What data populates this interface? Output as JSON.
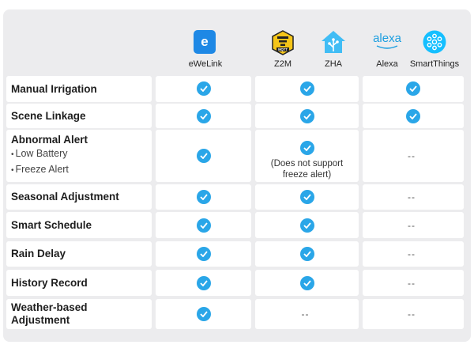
{
  "platforms": [
    {
      "key": "ewelink",
      "label": "eWeLink",
      "icon": "ewelink-logo-icon"
    },
    {
      "key": "z2m",
      "label": "Z2M",
      "icon": "z2m-bee-logo-icon"
    },
    {
      "key": "zha",
      "label": "ZHA",
      "icon": "zha-home-logo-icon"
    },
    {
      "key": "alexa",
      "label": "Alexa",
      "icon": "alexa-logo-icon",
      "logo_text": "alexa"
    },
    {
      "key": "smartthings",
      "label": "SmartThings",
      "icon": "smartthings-logo-icon"
    }
  ],
  "logos": {
    "ewelink_letter": "e",
    "z2m_text": "MQTT"
  },
  "rows": [
    {
      "title": "Manual Irrigation",
      "ewelink": "check",
      "z2m_zha": "check",
      "alexa_st": "check"
    },
    {
      "title": "Scene Linkage",
      "ewelink": "check",
      "z2m_zha": "check",
      "alexa_st": "check"
    },
    {
      "title": "Abnormal Alert",
      "subs": [
        "Low Battery",
        "Freeze Alert"
      ],
      "ewelink": "check",
      "z2m_zha": "check",
      "z2m_zha_note": "(Does not support\nfreeze alert)",
      "alexa_st": "--"
    },
    {
      "title": "Seasonal Adjustment",
      "ewelink": "check",
      "z2m_zha": "check",
      "alexa_st": "--"
    },
    {
      "title": "Smart Schedule",
      "ewelink": "check",
      "z2m_zha": "check",
      "alexa_st": "--"
    },
    {
      "title": "Rain Delay",
      "ewelink": "check",
      "z2m_zha": "check",
      "alexa_st": "--"
    },
    {
      "title": "History Record",
      "ewelink": "check",
      "z2m_zha": "check",
      "alexa_st": "--"
    },
    {
      "title": "Weather-based\nAdjustment",
      "ewelink": "check",
      "z2m_zha": "--",
      "alexa_st": "--"
    }
  ],
  "bullet": "•",
  "colors": {
    "check": "#2aa6e8",
    "ewelink": "#1e88e5",
    "z2m": "#f5c518",
    "zha": "#41bdf5",
    "alexa": "#1a9ee0",
    "smartthings": "#15bfff",
    "card": "#ececee"
  }
}
